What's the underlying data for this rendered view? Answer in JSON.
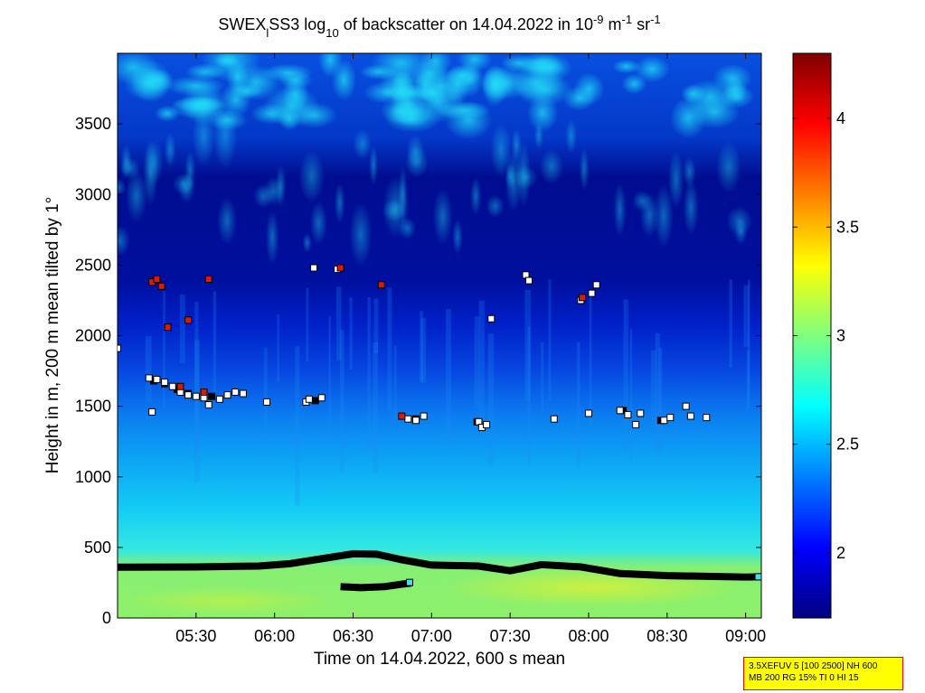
{
  "chart_data": {
    "type": "heatmap",
    "title": {
      "prefix": "SWEX",
      "sub_a": "l",
      "mid": "SS3 log",
      "sub_b": "10",
      "suffix": " of backscatter on 14.04.2022 in 10",
      "sup1": "-9",
      "unit1": " m",
      "sup2": "-1",
      "unit2": " sr",
      "sup3": "-1"
    },
    "xlabel": "Time on 14.04.2022, 600 s mean",
    "ylabel": "Height in m, 200 m mean tilted by 1°",
    "x_ticks": [
      "05:30",
      "06:00",
      "06:30",
      "07:00",
      "07:30",
      "08:00",
      "08:30",
      "09:00"
    ],
    "x_tick_hours": [
      5.5,
      6.0,
      6.5,
      7.0,
      7.5,
      8.0,
      8.5,
      9.0
    ],
    "xlim_hours": [
      5.0,
      9.1
    ],
    "y_ticks": [
      "0",
      "500",
      "1000",
      "1500",
      "2000",
      "2500",
      "3000",
      "3500"
    ],
    "ylim": [
      0,
      4000
    ],
    "colorbar": {
      "ticks": [
        "2",
        "2.5",
        "3",
        "3.5",
        "4"
      ],
      "tick_values": [
        2.0,
        2.5,
        3.0,
        3.5,
        4.0
      ],
      "range": [
        1.7,
        4.3
      ]
    },
    "mlh_main": [
      [
        5.0,
        360
      ],
      [
        5.5,
        362
      ],
      [
        5.9,
        368
      ],
      [
        6.1,
        385
      ],
      [
        6.3,
        420
      ],
      [
        6.5,
        455
      ],
      [
        6.65,
        452
      ],
      [
        6.8,
        415
      ],
      [
        7.0,
        375
      ],
      [
        7.3,
        368
      ],
      [
        7.5,
        335
      ],
      [
        7.7,
        378
      ],
      [
        7.95,
        362
      ],
      [
        8.2,
        315
      ],
      [
        8.5,
        300
      ],
      [
        9.0,
        290
      ],
      [
        9.1,
        292
      ]
    ],
    "mlh_lower": [
      [
        6.42,
        222
      ],
      [
        6.55,
        215
      ],
      [
        6.7,
        222
      ],
      [
        6.8,
        238
      ],
      [
        6.87,
        248
      ]
    ],
    "points_white": [
      [
        5.0,
        1910
      ],
      [
        5.2,
        1700
      ],
      [
        5.25,
        1690
      ],
      [
        5.3,
        1670
      ],
      [
        5.35,
        1640
      ],
      [
        5.4,
        1600
      ],
      [
        5.45,
        1580
      ],
      [
        5.5,
        1570
      ],
      [
        5.55,
        1560
      ],
      [
        5.58,
        1510
      ],
      [
        5.65,
        1550
      ],
      [
        5.7,
        1580
      ],
      [
        5.75,
        1600
      ],
      [
        5.8,
        1590
      ],
      [
        5.22,
        1460
      ],
      [
        5.95,
        1530
      ],
      [
        6.2,
        1530
      ],
      [
        6.22,
        1550
      ],
      [
        6.3,
        1560
      ],
      [
        6.25,
        2480
      ],
      [
        6.4,
        2470
      ],
      [
        6.85,
        1410
      ],
      [
        6.9,
        1400
      ],
      [
        6.95,
        1430
      ],
      [
        7.3,
        1390
      ],
      [
        7.32,
        1350
      ],
      [
        7.35,
        1370
      ],
      [
        7.38,
        2120
      ],
      [
        7.6,
        2430
      ],
      [
        7.62,
        2390
      ],
      [
        7.78,
        1410
      ],
      [
        7.95,
        2250
      ],
      [
        8.02,
        2300
      ],
      [
        8.05,
        2360
      ],
      [
        8.0,
        1450
      ],
      [
        8.2,
        1470
      ],
      [
        8.25,
        1440
      ],
      [
        8.3,
        1370
      ],
      [
        8.33,
        1450
      ],
      [
        8.48,
        1400
      ],
      [
        8.52,
        1420
      ],
      [
        8.62,
        1500
      ],
      [
        8.65,
        1430
      ],
      [
        8.75,
        1420
      ]
    ],
    "points_red": [
      [
        5.22,
        2380
      ],
      [
        5.25,
        2400
      ],
      [
        5.28,
        2350
      ],
      [
        5.32,
        2060
      ],
      [
        5.4,
        1640
      ],
      [
        5.45,
        2110
      ],
      [
        5.55,
        1600
      ],
      [
        5.58,
        2400
      ],
      [
        6.42,
        2480
      ],
      [
        6.68,
        2360
      ],
      [
        6.81,
        1430
      ],
      [
        7.96,
        2270
      ]
    ],
    "points_black": [
      [
        5.23,
        1680
      ],
      [
        5.3,
        1660
      ],
      [
        5.38,
        1620
      ],
      [
        5.45,
        1590
      ],
      [
        5.6,
        1570
      ],
      [
        6.26,
        1540
      ],
      [
        6.9,
        1410
      ],
      [
        7.29,
        1390
      ],
      [
        8.22,
        1470
      ],
      [
        8.46,
        1400
      ]
    ],
    "points_cyan": [
      [
        6.86,
        252
      ],
      [
        9.08,
        292
      ]
    ],
    "colors": {
      "colormap": [
        "#00007f",
        "#0000ff",
        "#007fff",
        "#00ffff",
        "#7fff7f",
        "#ffff00",
        "#ff7f00",
        "#ff0000",
        "#7f0000"
      ]
    }
  },
  "info_box": {
    "line1": "3.5XEFUV 5 [100 2500] NH 600",
    "line2": "MB 200 RG 15% TI 0 HI 15"
  }
}
